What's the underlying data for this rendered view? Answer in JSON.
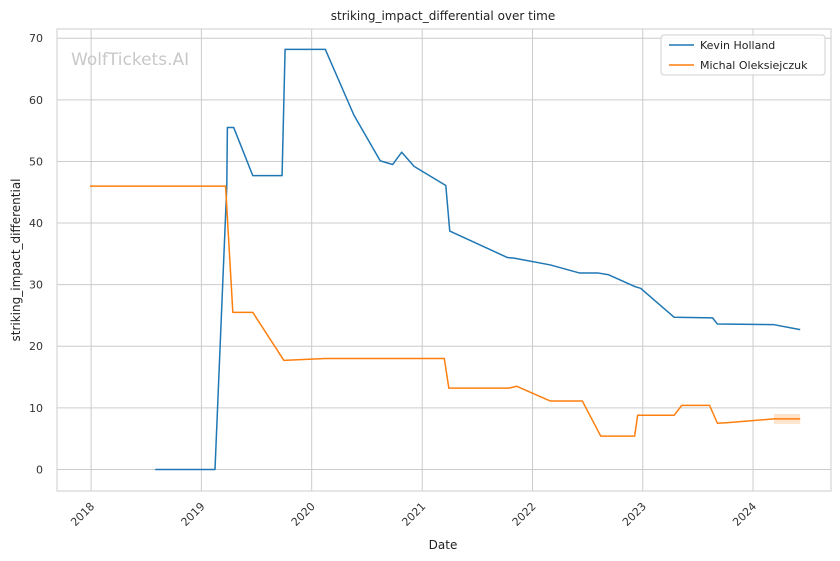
{
  "chart_data": {
    "type": "line",
    "title": "striking_impact_differential over time",
    "xlabel": "Date",
    "ylabel": "striking_impact_differential",
    "watermark": "WolfTickets.AI",
    "x_ticks": [
      "2018",
      "2019",
      "2020",
      "2021",
      "2022",
      "2023",
      "2024"
    ],
    "y_ticks": [
      0,
      10,
      20,
      30,
      40,
      50,
      60,
      70
    ],
    "xlim": [
      "2017-09-10",
      "2024-09-15"
    ],
    "ylim": [
      -3.5,
      71.5
    ],
    "grid": true,
    "legend_position": "top-right",
    "series": [
      {
        "name": "Kevin Holland",
        "color": "#1f77b4",
        "points": [
          [
            "2018-08-01",
            0.0
          ],
          [
            "2019-02-15",
            0.0
          ],
          [
            "2019-03-26",
            46.0
          ],
          [
            "2019-03-28",
            55.5
          ],
          [
            "2019-04-18",
            55.5
          ],
          [
            "2019-06-20",
            47.7
          ],
          [
            "2019-09-25",
            47.7
          ],
          [
            "2019-10-05",
            68.2
          ],
          [
            "2020-02-15",
            68.2
          ],
          [
            "2020-05-20",
            57.5
          ],
          [
            "2020-08-15",
            50.1
          ],
          [
            "2020-09-25",
            49.5
          ],
          [
            "2020-10-25",
            51.5
          ],
          [
            "2020-12-05",
            49.2
          ],
          [
            "2021-03-20",
            46.1
          ],
          [
            "2021-04-02",
            38.7
          ],
          [
            "2021-10-10",
            34.4
          ],
          [
            "2021-11-01",
            34.3
          ],
          [
            "2022-03-01",
            33.2
          ],
          [
            "2022-06-05",
            31.9
          ],
          [
            "2022-08-05",
            31.9
          ],
          [
            "2022-09-10",
            31.6
          ],
          [
            "2022-12-05",
            29.7
          ],
          [
            "2022-12-25",
            29.4
          ],
          [
            "2023-04-15",
            24.7
          ],
          [
            "2023-08-20",
            24.6
          ],
          [
            "2023-09-05",
            23.6
          ],
          [
            "2024-03-10",
            23.5
          ],
          [
            "2024-06-05",
            22.7
          ]
        ]
      },
      {
        "name": "Michal Oleksiejczuk",
        "color": "#ff7f0e",
        "points": [
          [
            "2017-12-28",
            46.0
          ],
          [
            "2019-03-22",
            46.0
          ],
          [
            "2019-04-15",
            25.5
          ],
          [
            "2019-06-20",
            25.5
          ],
          [
            "2019-10-01",
            17.7
          ],
          [
            "2020-02-15",
            18.0
          ],
          [
            "2021-03-15",
            18.0
          ],
          [
            "2021-03-30",
            13.2
          ],
          [
            "2021-10-15",
            13.2
          ],
          [
            "2021-11-10",
            13.5
          ],
          [
            "2022-03-01",
            11.1
          ],
          [
            "2022-06-15",
            11.1
          ],
          [
            "2022-08-15",
            5.4
          ],
          [
            "2022-12-05",
            5.4
          ],
          [
            "2022-12-15",
            8.8
          ],
          [
            "2023-04-15",
            8.8
          ],
          [
            "2023-05-10",
            10.4
          ],
          [
            "2023-08-10",
            10.4
          ],
          [
            "2023-09-05",
            7.5
          ],
          [
            "2023-10-10",
            7.6
          ],
          [
            "2024-03-10",
            8.2
          ],
          [
            "2024-06-05",
            8.2
          ]
        ],
        "band": {
          "x": [
            "2024-03-10",
            "2024-06-05"
          ],
          "low": [
            7.4,
            7.4
          ],
          "high": [
            9.0,
            9.0
          ]
        }
      }
    ]
  }
}
